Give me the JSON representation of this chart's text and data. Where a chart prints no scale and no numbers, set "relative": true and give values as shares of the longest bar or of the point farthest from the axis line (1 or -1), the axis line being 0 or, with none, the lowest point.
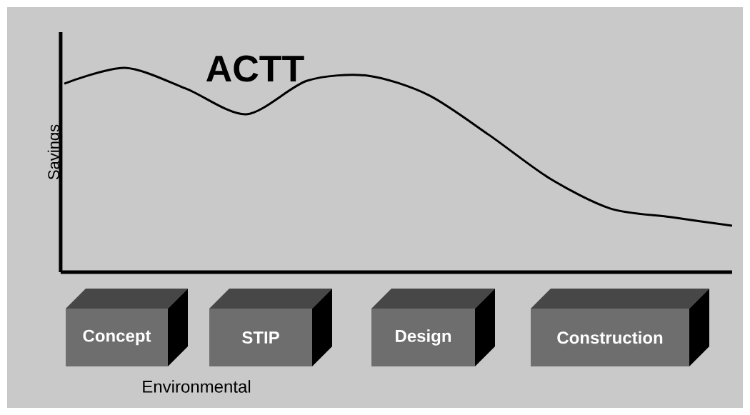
{
  "chart_data": {
    "type": "line",
    "relative": true,
    "ylabel": "Savings",
    "categories": [
      null,
      null,
      null,
      null,
      null,
      null,
      null,
      null,
      null,
      null,
      null,
      null
    ],
    "series": [
      {
        "name": "ACTT",
        "color": "#000000",
        "values": [
          0.923,
          1,
          0.899,
          0.773,
          0.937,
          0.962,
          0.867,
          0.671,
          0.458,
          0.311,
          0.269,
          0.227
        ]
      }
    ],
    "annotations": [
      "Concept",
      "STIP",
      "Design",
      "Construction",
      "Environmental"
    ]
  }
}
